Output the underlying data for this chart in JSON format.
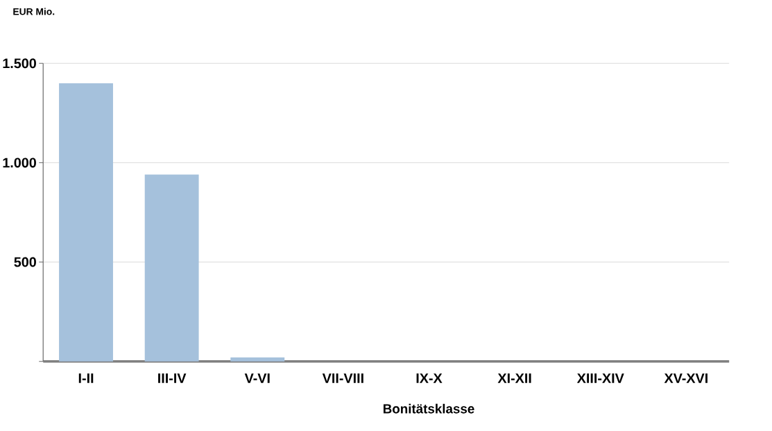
{
  "chart_data": {
    "type": "bar",
    "annotations": [
      "EUR Mio."
    ],
    "xlabel": "Bonitätsklasse",
    "categories": [
      "I-II",
      "III-IV",
      "V-VI",
      "VII-VIII",
      "IX-X",
      "XI-XII",
      "XIII-XIV",
      "XV-XVI"
    ],
    "values": [
      1400,
      940,
      20,
      0,
      0,
      0,
      0,
      0
    ],
    "color": "#a5c1dc",
    "ylim": [
      0,
      1500
    ],
    "yticks": [
      {
        "value": 0,
        "label": null
      },
      500,
      {
        "value": 1000,
        "label": "1.000"
      },
      {
        "value": 1500,
        "label": "1.500"
      }
    ],
    "grid": "y"
  }
}
